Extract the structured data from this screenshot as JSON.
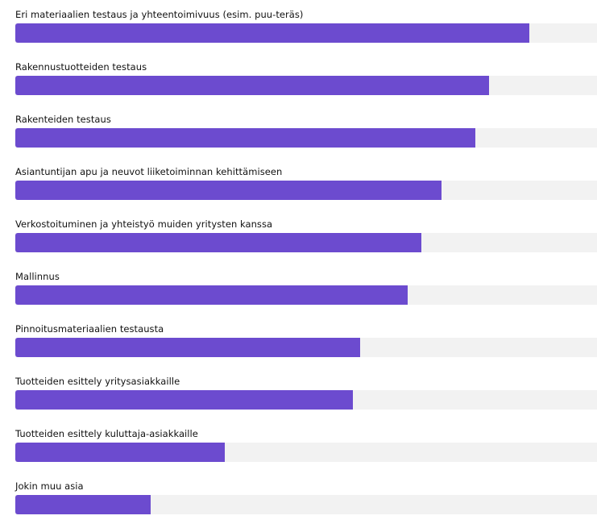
{
  "colors": {
    "bar": "#6c4bcf",
    "track": "#f2f2f2",
    "text": "#111111"
  },
  "chart_data": {
    "type": "bar",
    "orientation": "horizontal",
    "title": "",
    "xlabel": "",
    "ylabel": "",
    "xlim": [
      0,
      100
    ],
    "grid": false,
    "categories": [
      "Eri materiaalien testaus ja yhteentoimivuus (esim. puu-teräs)",
      "Rakennustuotteiden testaus",
      "Rakenteiden testaus",
      "Asiantuntijan apu ja neuvot liiketoiminnan kehittämiseen",
      "Verkostoituminen ja yhteistyö muiden yritysten kanssa",
      "Mallinnus",
      "Pinnoitusmateriaalien testausta",
      "Tuotteiden esittely yritysasiakkaille",
      "Tuotteiden esittely kuluttaja-asiakkaille",
      "Jokin muu asia"
    ],
    "values": [
      88.4,
      81.4,
      79.1,
      73.3,
      69.8,
      67.4,
      59.3,
      58.1,
      36.0,
      23.3
    ]
  }
}
